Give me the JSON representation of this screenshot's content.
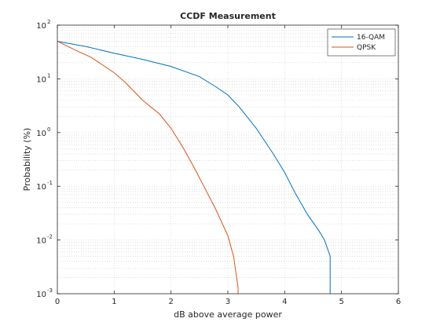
{
  "chart_data": {
    "type": "line",
    "title": "CCDF Measurement",
    "xlabel": "dB above average power",
    "ylabel": "Probability (%)",
    "xlim": [
      0,
      6
    ],
    "ylim": [
      0.001,
      100
    ],
    "yscale": "log",
    "grid": true,
    "minor_grid": true,
    "legend_position": "top-right",
    "x_ticks": [
      "0",
      "1",
      "2",
      "3",
      "4",
      "5",
      "6"
    ],
    "y_ticks": [
      {
        "base": "10",
        "exp": "-3",
        "value": 0.001
      },
      {
        "base": "10",
        "exp": "-2",
        "value": 0.01
      },
      {
        "base": "10",
        "exp": "-1",
        "value": 0.1
      },
      {
        "base": "10",
        "exp": "0",
        "value": 1
      },
      {
        "base": "10",
        "exp": "1",
        "value": 10
      },
      {
        "base": "10",
        "exp": "2",
        "value": 100
      }
    ],
    "series": [
      {
        "name": "16-QAM",
        "color": "#0072BD",
        "x": [
          0,
          0.5,
          1.0,
          1.5,
          2.0,
          2.5,
          2.8,
          3.0,
          3.2,
          3.5,
          3.8,
          4.0,
          4.2,
          4.4,
          4.6,
          4.7,
          4.8,
          4.8
        ],
        "y": [
          50,
          40,
          30,
          23,
          17,
          11,
          7,
          5,
          3,
          1.2,
          0.4,
          0.18,
          0.07,
          0.03,
          0.015,
          0.01,
          0.005,
          0.001
        ]
      },
      {
        "name": "QPSK",
        "color": "#D95319",
        "x": [
          0,
          0.3,
          0.6,
          1.0,
          1.2,
          1.5,
          1.8,
          2.0,
          2.2,
          2.4,
          2.6,
          2.8,
          3.0,
          3.1,
          3.18,
          3.18
        ],
        "y": [
          50,
          35,
          25,
          13,
          8.5,
          4,
          2.2,
          1.2,
          0.55,
          0.23,
          0.09,
          0.035,
          0.012,
          0.005,
          0.0013,
          0.001
        ]
      }
    ]
  }
}
